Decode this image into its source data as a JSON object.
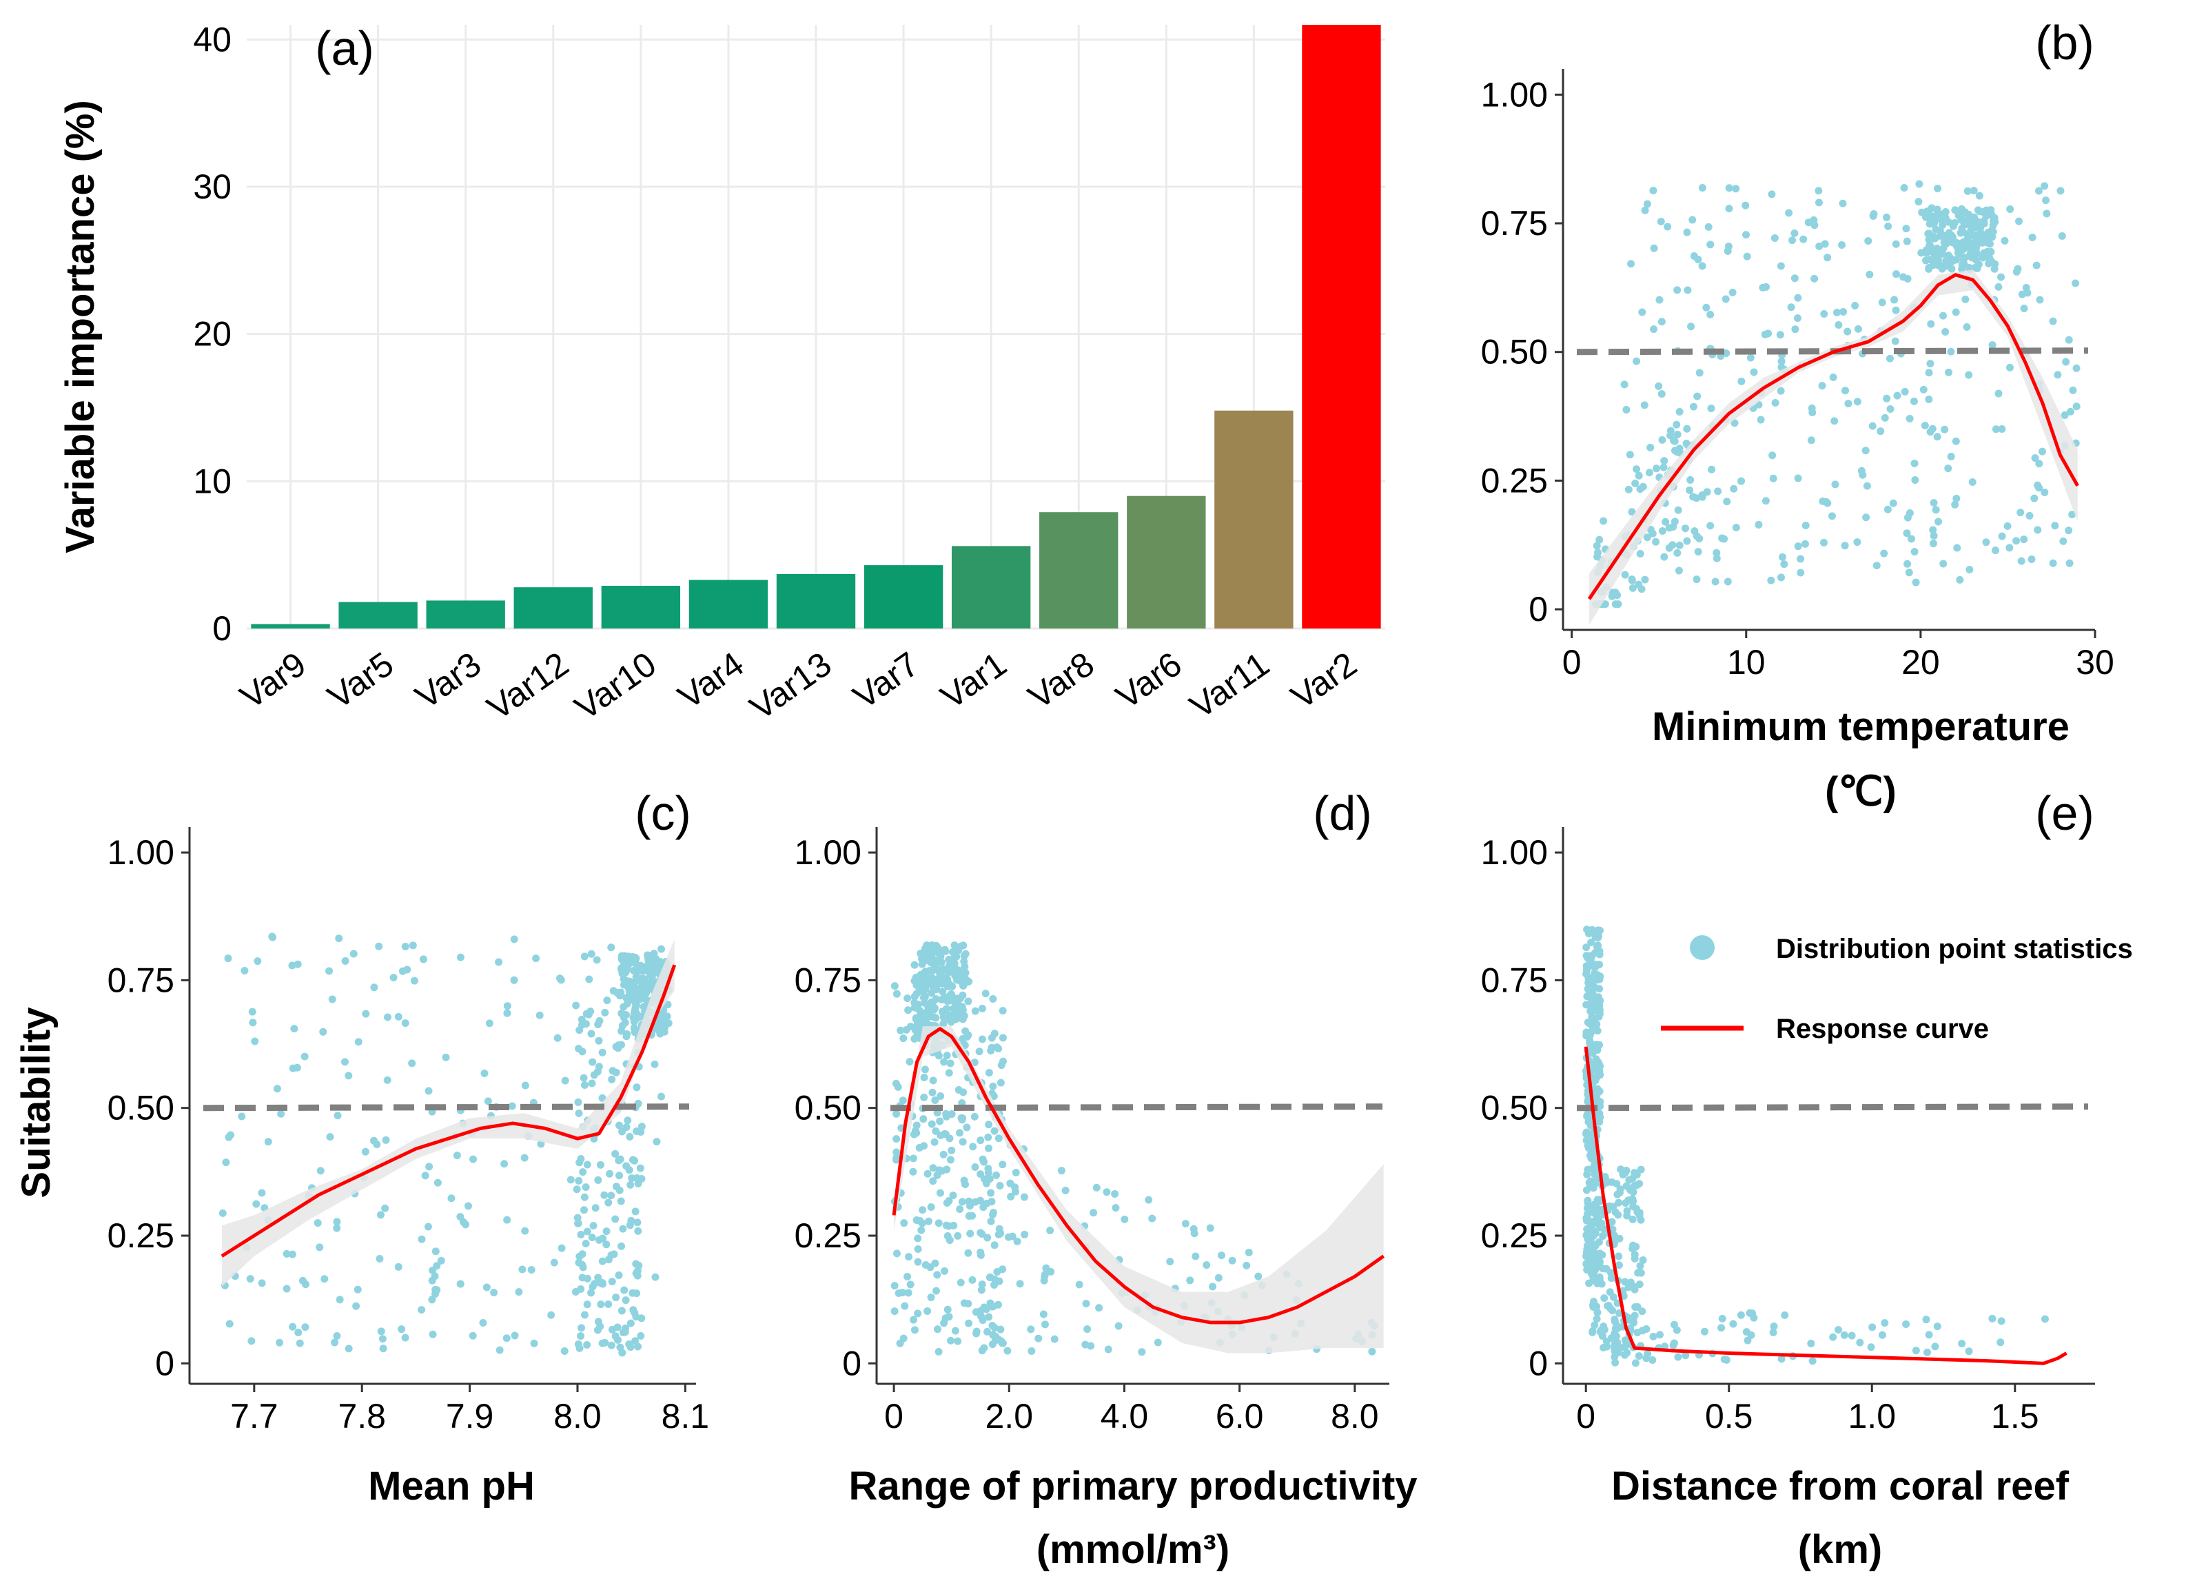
{
  "chart_data": [
    {
      "id": "a",
      "type": "bar",
      "panel_label": "(a)",
      "ylabel": "Variable importance (%)",
      "xlabel": "",
      "categories": [
        "Var9",
        "Var5",
        "Var3",
        "Var12",
        "Var10",
        "Var4",
        "Var13",
        "Var7",
        "Var1",
        "Var8",
        "Var6",
        "Var11",
        "Var2"
      ],
      "values": [
        0.3,
        1.8,
        1.9,
        2.8,
        2.9,
        3.3,
        3.7,
        4.3,
        5.6,
        7.9,
        9.0,
        14.8,
        41.0
      ],
      "colors": [
        "#119e73",
        "#119e73",
        "#119e73",
        "#0e9c73",
        "#0e9c73",
        "#0d9c72",
        "#0d9c71",
        "#0a9a6b",
        "#2f9766",
        "#57925f",
        "#67905d",
        "#9c8550",
        "#ff0000"
      ],
      "ylim": [
        0,
        41
      ],
      "yticks": [
        0,
        10,
        20,
        30,
        40
      ],
      "ytick_labels": [
        "0",
        "10",
        "20",
        "30",
        "40"
      ],
      "grid": true
    },
    {
      "id": "b",
      "type": "scatter",
      "panel_label": "(b)",
      "xlabel": "Minimum temperature",
      "xlabel_line2": "(℃)",
      "ylabel": "",
      "xlim": [
        -0.5,
        30
      ],
      "ylim": [
        -0.04,
        1.05
      ],
      "xticks": [
        0,
        10,
        20,
        30
      ],
      "xtick_labels": [
        "0",
        "10",
        "20",
        "30"
      ],
      "yticks": [
        0,
        0.25,
        0.5,
        0.75,
        1.0
      ],
      "ytick_labels": [
        "0",
        "0.25",
        "0.50",
        "0.75",
        "1.00"
      ],
      "threshold": 0.5,
      "curve": {
        "x": [
          1,
          3,
          5,
          7,
          9,
          11,
          13,
          15,
          17,
          19,
          20,
          21,
          22,
          23,
          24,
          25,
          26,
          27,
          28,
          29
        ],
        "y": [
          0.02,
          0.12,
          0.22,
          0.31,
          0.38,
          0.43,
          0.47,
          0.5,
          0.52,
          0.56,
          0.59,
          0.63,
          0.65,
          0.64,
          0.6,
          0.55,
          0.48,
          0.4,
          0.3,
          0.24
        ]
      },
      "band": {
        "x": [
          1,
          3,
          5,
          7,
          9,
          11,
          13,
          15,
          17,
          19,
          21,
          23,
          25,
          27,
          29
        ],
        "lo": [
          -0.03,
          0.08,
          0.19,
          0.29,
          0.36,
          0.41,
          0.46,
          0.49,
          0.51,
          0.54,
          0.61,
          0.62,
          0.53,
          0.35,
          0.17
        ],
        "hi": [
          0.07,
          0.16,
          0.25,
          0.33,
          0.4,
          0.45,
          0.48,
          0.51,
          0.53,
          0.58,
          0.65,
          0.66,
          0.57,
          0.45,
          0.31
        ]
      },
      "points": {
        "seed": 11,
        "n": 620,
        "model": "tmin"
      }
    },
    {
      "id": "c",
      "type": "scatter",
      "panel_label": "(c)",
      "xlabel": "Mean pH",
      "ylabel": "Suitability",
      "xlim": [
        7.64,
        8.11
      ],
      "ylim": [
        -0.04,
        1.05
      ],
      "xticks": [
        7.7,
        7.8,
        7.9,
        8.0,
        8.1
      ],
      "xtick_labels": [
        "7.7",
        "7.8",
        "7.9",
        "8.0",
        "8.1"
      ],
      "yticks": [
        0,
        0.25,
        0.5,
        0.75,
        1.0
      ],
      "ytick_labels": [
        "0",
        "0.25",
        "0.50",
        "0.75",
        "1.00"
      ],
      "threshold": 0.5,
      "curve": {
        "x": [
          7.67,
          7.7,
          7.73,
          7.76,
          7.79,
          7.82,
          7.85,
          7.88,
          7.91,
          7.94,
          7.97,
          8.0,
          8.02,
          8.04,
          8.06,
          8.08,
          8.09
        ],
        "y": [
          0.21,
          0.25,
          0.29,
          0.33,
          0.36,
          0.39,
          0.42,
          0.44,
          0.46,
          0.47,
          0.46,
          0.44,
          0.45,
          0.52,
          0.61,
          0.72,
          0.78
        ]
      },
      "band": {
        "x": [
          7.67,
          7.7,
          7.75,
          7.8,
          7.85,
          7.9,
          7.95,
          8.0,
          8.04,
          8.07,
          8.09
        ],
        "lo": [
          0.15,
          0.21,
          0.28,
          0.34,
          0.4,
          0.44,
          0.44,
          0.42,
          0.49,
          0.67,
          0.73
        ],
        "hi": [
          0.27,
          0.29,
          0.34,
          0.38,
          0.44,
          0.48,
          0.49,
          0.46,
          0.55,
          0.73,
          0.83
        ]
      },
      "points": {
        "seed": 23,
        "n": 620,
        "model": "ph"
      }
    },
    {
      "id": "d",
      "type": "scatter",
      "panel_label": "(d)",
      "xlabel": "Range of primary productivity",
      "xlabel_line2": "(mmol/m³)",
      "ylabel": "",
      "xlim": [
        -0.3,
        8.6
      ],
      "ylim": [
        -0.04,
        1.05
      ],
      "xticks": [
        0,
        2,
        4,
        6,
        8
      ],
      "xtick_labels": [
        "0",
        "2.0",
        "4.0",
        "6.0",
        "8.0"
      ],
      "yticks": [
        0,
        0.25,
        0.5,
        0.75,
        1.0
      ],
      "ytick_labels": [
        "0",
        "0.25",
        "0.50",
        "0.75",
        "1.00"
      ],
      "threshold": 0.5,
      "curve": {
        "x": [
          0.0,
          0.2,
          0.4,
          0.6,
          0.8,
          1.0,
          1.3,
          1.6,
          2.0,
          2.5,
          3.0,
          3.5,
          4.0,
          4.5,
          5.0,
          5.5,
          6.0,
          6.5,
          7.0,
          7.5,
          8.0,
          8.5
        ],
        "y": [
          0.29,
          0.47,
          0.59,
          0.64,
          0.655,
          0.64,
          0.59,
          0.52,
          0.44,
          0.35,
          0.27,
          0.2,
          0.15,
          0.11,
          0.09,
          0.08,
          0.08,
          0.09,
          0.11,
          0.14,
          0.17,
          0.21
        ]
      },
      "band": {
        "x": [
          0.0,
          0.5,
          1.0,
          2.0,
          3.0,
          4.0,
          5.0,
          5.8,
          6.5,
          7.5,
          8.5
        ],
        "lo": [
          0.26,
          0.6,
          0.62,
          0.42,
          0.24,
          0.11,
          0.04,
          0.02,
          0.02,
          0.03,
          0.03
        ],
        "hi": [
          0.32,
          0.66,
          0.66,
          0.46,
          0.3,
          0.19,
          0.14,
          0.14,
          0.17,
          0.26,
          0.39
        ]
      },
      "points": {
        "seed": 37,
        "n": 620,
        "model": "pp"
      }
    },
    {
      "id": "e",
      "type": "scatter",
      "panel_label": "(e)",
      "xlabel": "Distance from coral reef",
      "xlabel_line2": "(km)",
      "ylabel": "",
      "xlim": [
        -0.08,
        1.78
      ],
      "ylim": [
        -0.04,
        1.05
      ],
      "xticks": [
        0,
        0.5,
        1.0,
        1.5
      ],
      "xtick_labels": [
        "0",
        "0.5",
        "1.0",
        "1.5"
      ],
      "yticks": [
        0,
        0.25,
        0.5,
        0.75,
        1.0
      ],
      "ytick_labels": [
        "0",
        "0.25",
        "0.50",
        "0.75",
        "1.00"
      ],
      "threshold": 0.5,
      "curve": {
        "x": [
          0.0,
          0.03,
          0.06,
          0.1,
          0.14,
          0.17,
          0.3,
          0.5,
          0.8,
          1.1,
          1.4,
          1.6,
          1.65,
          1.68
        ],
        "y": [
          0.62,
          0.47,
          0.33,
          0.19,
          0.07,
          0.03,
          0.025,
          0.02,
          0.015,
          0.01,
          0.005,
          0.0,
          0.01,
          0.02
        ]
      },
      "band": {
        "x": [],
        "lo": [],
        "hi": []
      },
      "points": {
        "seed": 53,
        "n": 560,
        "model": "dist"
      },
      "legend": {
        "points_label": "Distribution point statistics",
        "curve_label": "Response curve"
      }
    }
  ],
  "colors": {
    "points": "#8fd3e0",
    "curve": "#ff0000",
    "threshold": "#808080",
    "band": "#e6e6e6",
    "grid": "#ebebeb",
    "axis": "#333333"
  }
}
